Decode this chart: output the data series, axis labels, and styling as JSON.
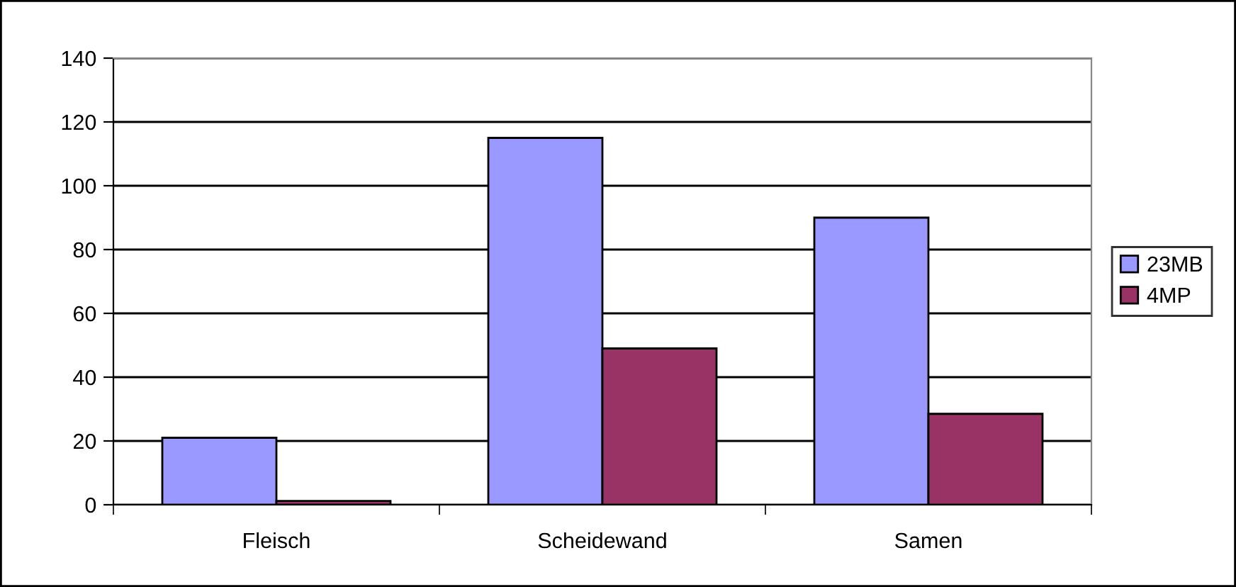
{
  "chart_data": {
    "type": "bar",
    "categories": [
      "Fleisch",
      "Scheidewand",
      "Samen"
    ],
    "series": [
      {
        "name": "23MB",
        "color": "#9999ff",
        "values": [
          21,
          115,
          90
        ]
      },
      {
        "name": "4MP",
        "color": "#993366",
        "values": [
          1.2,
          49,
          28.5
        ]
      }
    ],
    "ylim": [
      0,
      140
    ],
    "yticks": [
      0,
      20,
      40,
      60,
      80,
      100,
      120,
      140
    ],
    "grid": "y",
    "legend": "right"
  }
}
